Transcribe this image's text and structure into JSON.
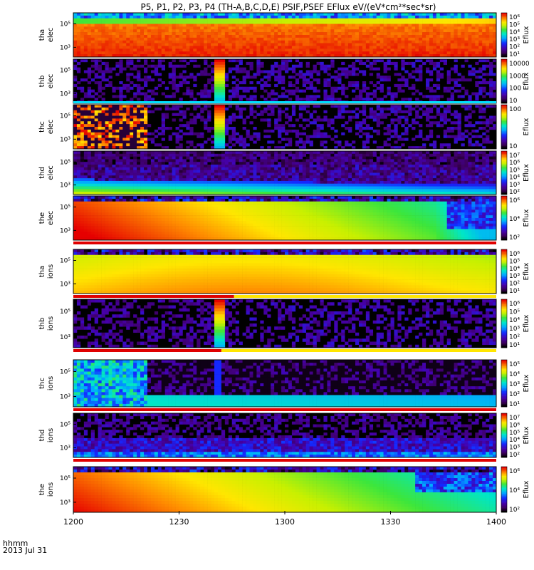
{
  "title": "P5, P1, P2, P3, P4  (TH-A,B,C,D,E)  PSIF,PSEF  EFlux  eV/(eV*cm²*sec*sr)",
  "chart_data": {
    "type": "heatmap",
    "x_ticks": [
      "1200",
      "1230",
      "1300",
      "1330",
      "1400"
    ],
    "x_header": "hhmm",
    "date_label": "2013 Jul 31",
    "colorbar_label": "Eflux",
    "panels": [
      {
        "id": "tha-elec",
        "label_top": "tha",
        "label_bottom": "elec",
        "y_ticks": [
          "10⁵",
          "10³"
        ],
        "cb_ticks": [
          "10⁶",
          "10⁵",
          "10⁴",
          "10³",
          "10²",
          "10¹"
        ],
        "bar": "none",
        "pattern": "tha_e"
      },
      {
        "id": "thb-elec",
        "label_top": "thb",
        "label_bottom": "elec",
        "y_ticks": [
          "10⁵",
          "10³"
        ],
        "cb_ticks": [
          "10000",
          "1000",
          "100",
          "10"
        ],
        "bar": "cyan",
        "pattern": "sparse_b"
      },
      {
        "id": "thc-elec",
        "label_top": "thc",
        "label_bottom": "elec",
        "y_ticks": [
          "10⁵",
          "10³"
        ],
        "cb_ticks": [
          "100",
          "10"
        ],
        "bar": "none",
        "pattern": "sparse_c"
      },
      {
        "id": "thd-elec",
        "label_top": "thd",
        "label_bottom": "elec",
        "y_ticks": [
          "10⁵",
          "10³"
        ],
        "cb_ticks": [
          "10⁷",
          "10⁶",
          "10⁵",
          "10⁴",
          "10³",
          "10²"
        ],
        "bar": "none",
        "pattern": "thd_e"
      },
      {
        "id": "the-elec",
        "label_top": "the",
        "label_bottom": "elec",
        "y_ticks": [
          "10⁵",
          "10³"
        ],
        "cb_ticks": [
          "10⁶",
          "10⁴",
          "10²"
        ],
        "bar": "red",
        "pattern": "the_e"
      },
      {
        "id": "tha-ions",
        "label_top": "tha",
        "label_bottom": "ions",
        "y_ticks": [
          "10⁵",
          "10³"
        ],
        "cb_ticks": [
          "10⁶",
          "10⁵",
          "10⁴",
          "10³",
          "10²",
          "10¹"
        ],
        "bar": "redyellow",
        "pattern": "tha_i"
      },
      {
        "id": "thb-ions",
        "label_top": "thb",
        "label_bottom": "ions",
        "y_ticks": [
          "10⁵",
          "10³"
        ],
        "cb_ticks": [
          "10⁶",
          "10⁵",
          "10⁴",
          "10³",
          "10²",
          "10¹"
        ],
        "bar": "redyellow",
        "pattern": "sparse_bi"
      },
      {
        "id": "thc-ions",
        "label_top": "thc",
        "label_bottom": "ions",
        "y_ticks": [
          "10⁵",
          "10³"
        ],
        "cb_ticks": [
          "10⁵",
          "10⁴",
          "10³",
          "10²",
          "10¹"
        ],
        "bar": "red",
        "pattern": "thc_i"
      },
      {
        "id": "thd-ions",
        "label_top": "thd",
        "label_bottom": "ions",
        "y_ticks": [
          "10⁵",
          "10³"
        ],
        "cb_ticks": [
          "10⁷",
          "10⁶",
          "10⁵",
          "10⁴",
          "10³",
          "10²"
        ],
        "bar": "red",
        "pattern": "thd_i"
      },
      {
        "id": "the-ions",
        "label_top": "the",
        "label_bottom": "ions",
        "y_ticks": [
          "10⁵",
          "10³"
        ],
        "cb_ticks": [
          "10⁶",
          "10⁴",
          "10²"
        ],
        "bar": "none",
        "pattern": "the_i"
      }
    ]
  }
}
